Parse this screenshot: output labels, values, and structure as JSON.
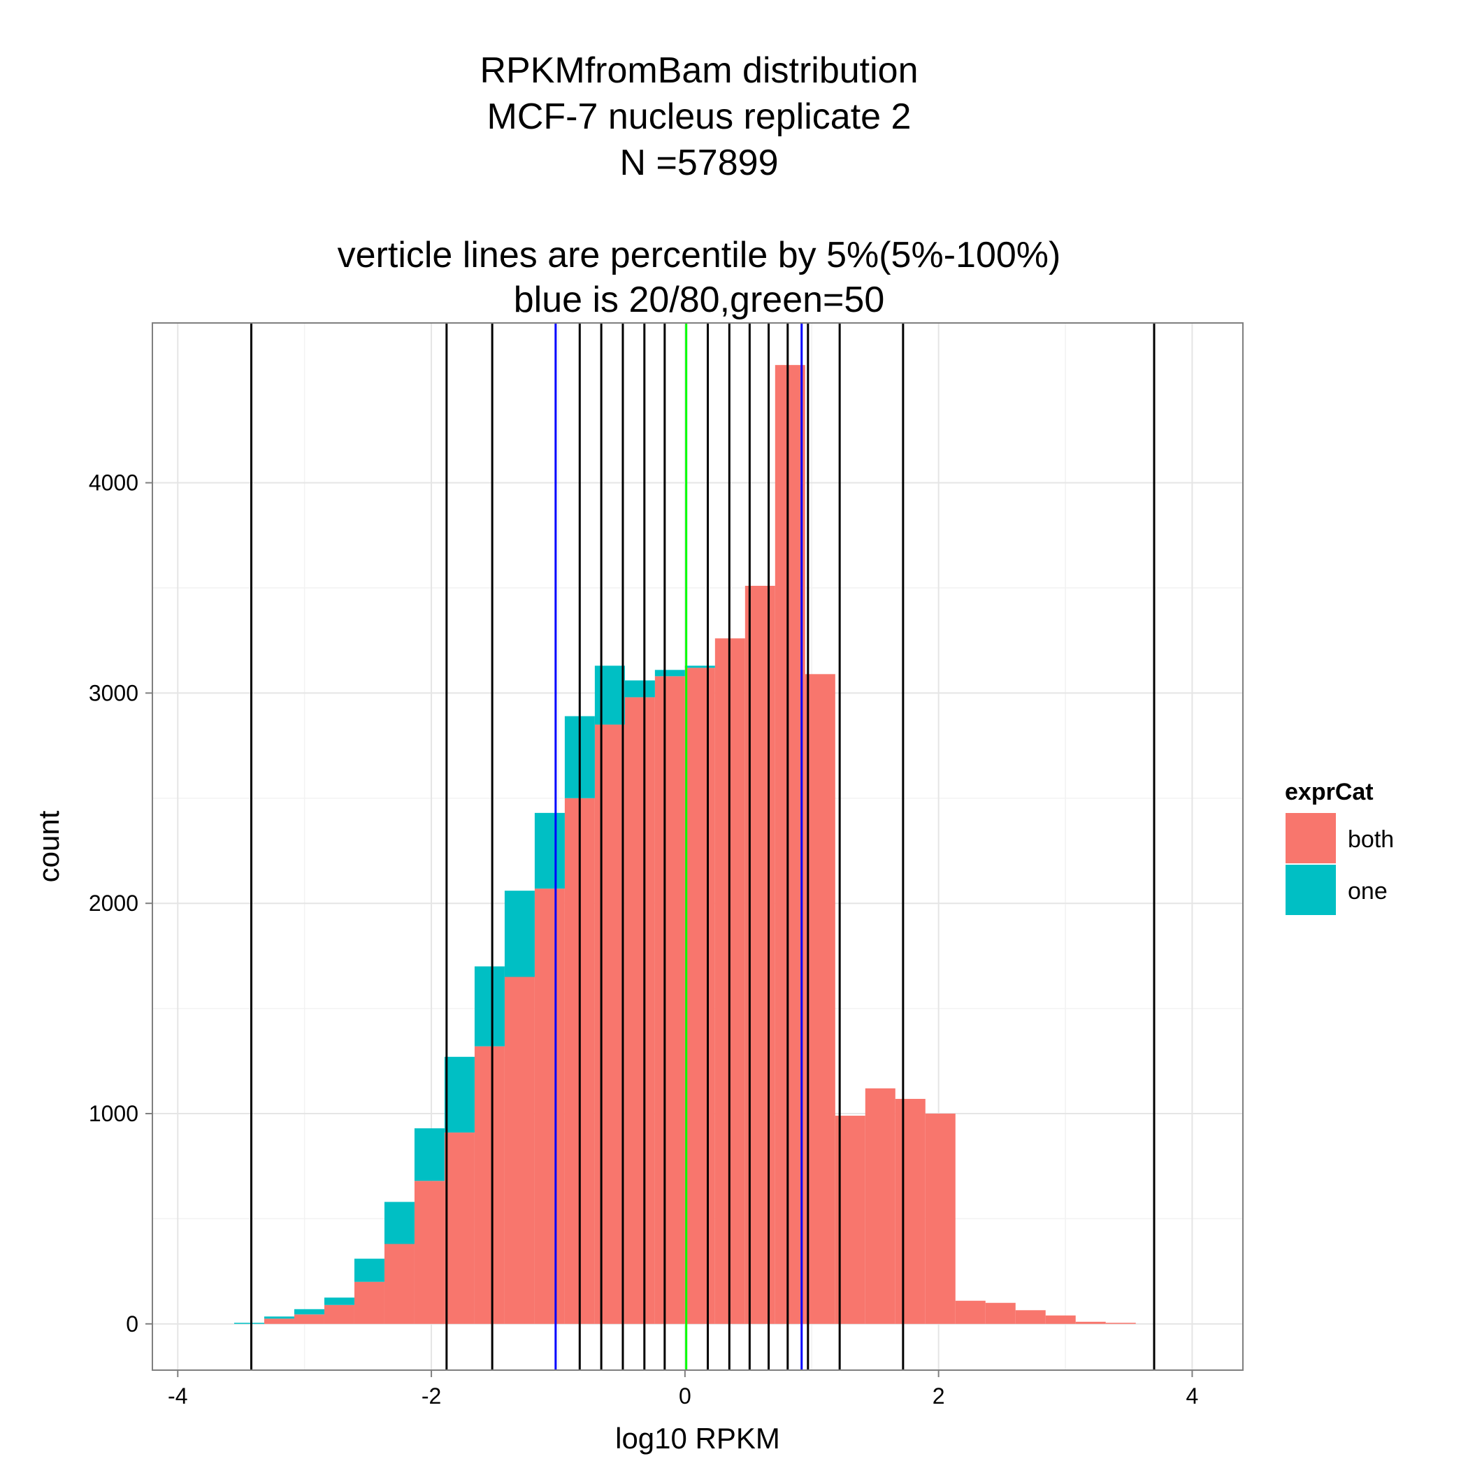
{
  "chart_data": {
    "type": "bar",
    "title_lines": [
      "RPKMfromBam distribution",
      "MCF-7 nucleus replicate 2",
      "N =57899",
      "",
      "verticle lines are percentile by 5%(5%-100%)",
      "blue is 20/80,green=50"
    ],
    "xlabel": "log10 RPKM",
    "ylabel": "count",
    "xlim": [
      -4.2,
      4.4
    ],
    "ylim": [
      -220,
      4760
    ],
    "x_ticks": [
      -4,
      -2,
      0,
      2,
      4
    ],
    "x_tick_labels": [
      "-4",
      "-2",
      "0",
      "2",
      "4"
    ],
    "y_ticks": [
      0,
      1000,
      2000,
      3000,
      4000
    ],
    "y_tick_labels": [
      "0",
      "1000",
      "2000",
      "3000",
      "4000"
    ],
    "grid": true,
    "stacked": true,
    "bin_width": 0.237,
    "bin_starts": [
      -3.555,
      -3.318,
      -3.081,
      -2.844,
      -2.607,
      -2.37,
      -2.133,
      -1.896,
      -1.659,
      -1.422,
      -1.185,
      -0.948,
      -0.711,
      -0.474,
      -0.237,
      0.0,
      0.237,
      0.474,
      0.711,
      0.948,
      1.185,
      1.422,
      1.659,
      1.896,
      2.133,
      2.37,
      2.607,
      2.844,
      3.081,
      3.318
    ],
    "series": [
      {
        "name": "both",
        "color": "#F8766D",
        "values": [
          0,
          25,
          45,
          90,
          200,
          380,
          680,
          910,
          1320,
          1650,
          2070,
          2500,
          2850,
          2980,
          3080,
          3120,
          3260,
          3510,
          4560,
          3090,
          990,
          1120,
          1070,
          1000,
          110,
          100,
          65,
          40,
          10,
          5
        ]
      },
      {
        "name": "one",
        "color": "#00BFC4",
        "values": [
          5,
          10,
          25,
          35,
          110,
          200,
          250,
          360,
          380,
          410,
          360,
          390,
          280,
          80,
          30,
          10,
          0,
          0,
          0,
          0,
          0,
          0,
          0,
          0,
          0,
          0,
          0,
          0,
          0,
          0
        ]
      }
    ],
    "vlines": [
      {
        "x": -3.42,
        "color": "#000000"
      },
      {
        "x": -1.88,
        "color": "#000000"
      },
      {
        "x": -1.52,
        "color": "#000000"
      },
      {
        "x": -1.02,
        "color": "#0000FF"
      },
      {
        "x": -0.83,
        "color": "#000000"
      },
      {
        "x": -0.66,
        "color": "#000000"
      },
      {
        "x": -0.49,
        "color": "#000000"
      },
      {
        "x": -0.32,
        "color": "#000000"
      },
      {
        "x": -0.16,
        "color": "#000000"
      },
      {
        "x": 0.01,
        "color": "#00FF00"
      },
      {
        "x": 0.18,
        "color": "#000000"
      },
      {
        "x": 0.35,
        "color": "#000000"
      },
      {
        "x": 0.51,
        "color": "#000000"
      },
      {
        "x": 0.66,
        "color": "#000000"
      },
      {
        "x": 0.81,
        "color": "#000000"
      },
      {
        "x": 0.92,
        "color": "#0000FF"
      },
      {
        "x": 0.97,
        "color": "#000000"
      },
      {
        "x": 1.22,
        "color": "#000000"
      },
      {
        "x": 1.72,
        "color": "#000000"
      },
      {
        "x": 3.7,
        "color": "#000000"
      }
    ],
    "legend": {
      "title": "exprCat",
      "placement": "right",
      "items": [
        {
          "label": "both",
          "color": "#F8766D"
        },
        {
          "label": "one",
          "color": "#00BFC4"
        }
      ]
    }
  }
}
